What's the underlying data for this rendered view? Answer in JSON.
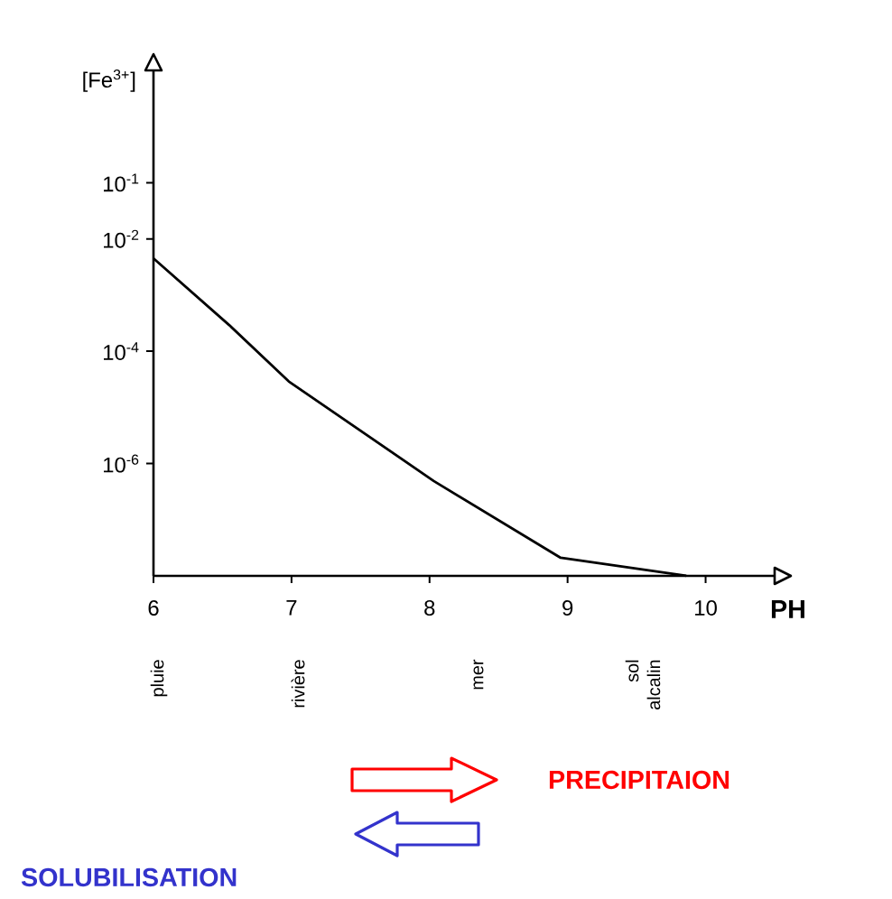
{
  "chart_data": {
    "type": "line",
    "xlabel": "PH",
    "ylabel": "[Fe$^{3+}$]",
    "x": [
      6,
      6.55,
      6.98,
      8.03,
      8.95,
      9.86
    ],
    "values": [
      0.0045,
      0.00029,
      2.9e-05,
      4.9e-07,
      2.1e-08,
      1e-08
    ],
    "color": "#000000",
    "log": "y",
    "xlim": [
      6,
      10.5
    ],
    "ylim": [
      1e-08,
      10
    ],
    "xticks": [
      6,
      {
        "value": 7,
        "label": "7"
      },
      8,
      9,
      10
    ],
    "yticks": [
      {
        "value": 0.1,
        "label": "10$^{-1}$"
      },
      {
        "value": 0.01,
        "label": "10$^{-2}$"
      },
      {
        "value": 0.0001,
        "label": "10$^{-4}$"
      },
      {
        "value": 1e-06,
        "label": "10$^{-6}$"
      }
    ],
    "annotations": [
      "pluie",
      "rivière",
      "mer",
      "sol alcalin",
      "PRECIPITAION",
      "SOLUBILISATION"
    ]
  }
}
